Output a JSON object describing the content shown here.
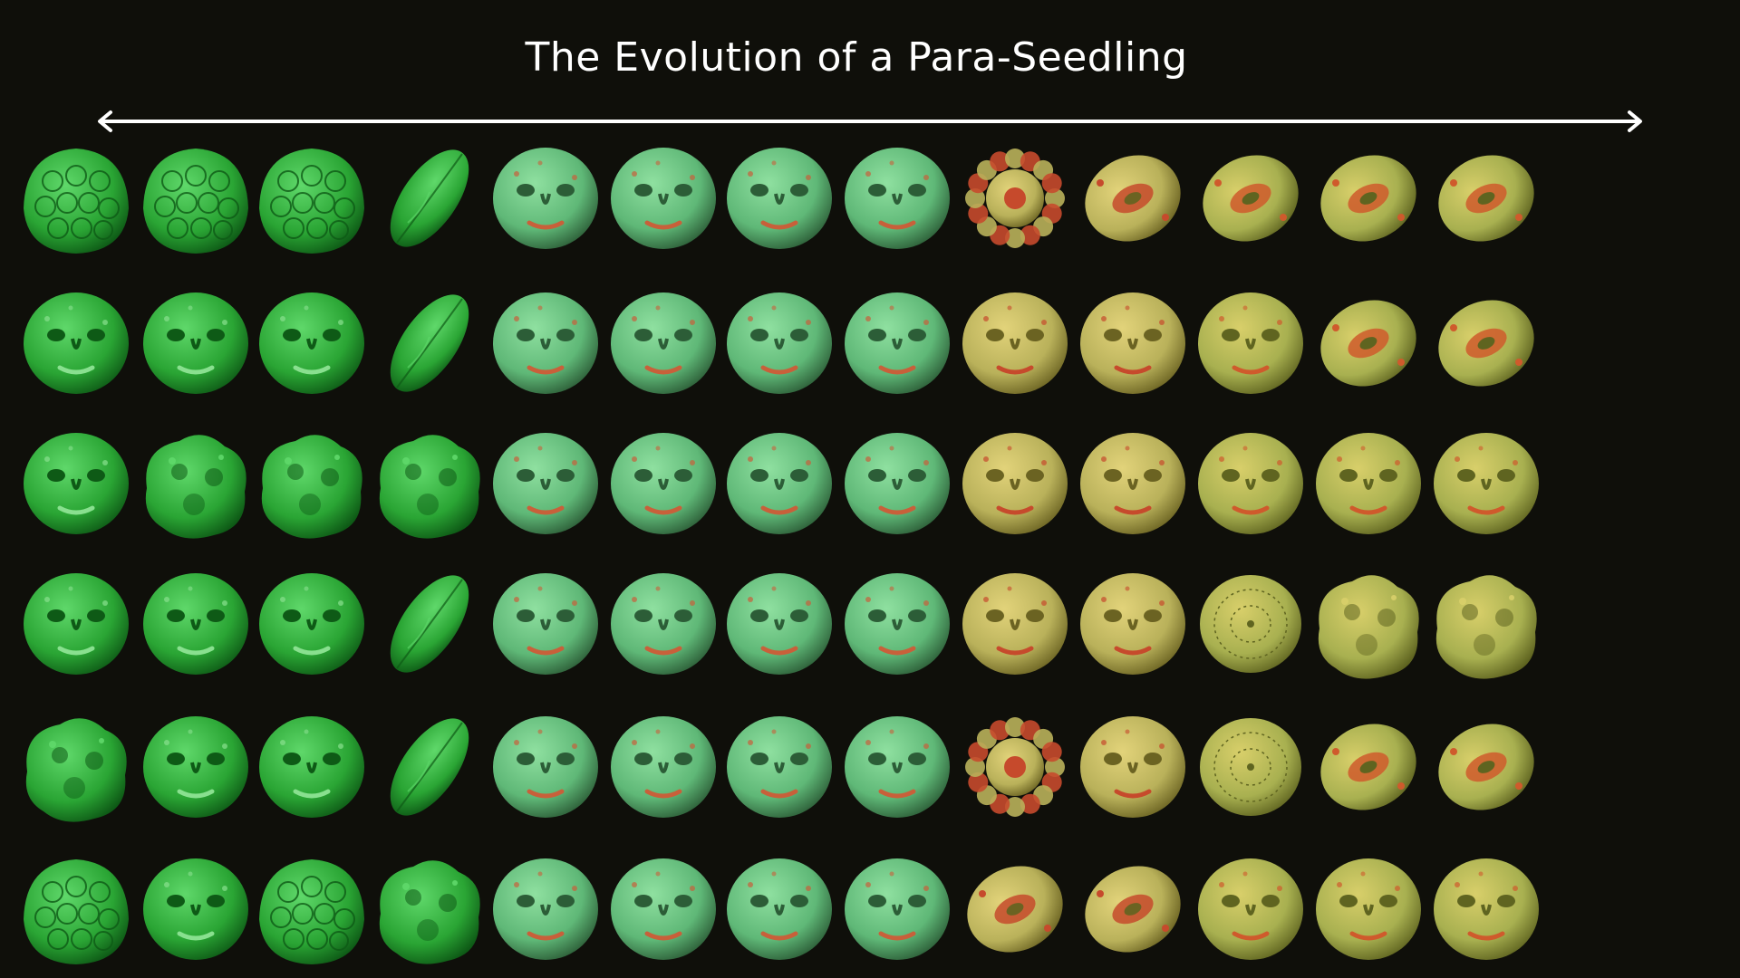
{
  "title": "The Evolution of a Para-Seedling",
  "arrow": {
    "direction": "bidirectional",
    "color": "#ffffff"
  },
  "palette": {
    "background": "#0f0f0a",
    "green": "#2fb83a",
    "mint": "#6fcf84",
    "rust": "#c8603a",
    "yellow": "#c9b24a",
    "beige": "#b8ad8a"
  },
  "grid": {
    "rows": 6,
    "columns": 13,
    "items": [
      [
        "seed-pod-icon",
        "seed-pod-icon",
        "seed-pod-icon",
        "leaf-pod-icon",
        "face-icon",
        "face-icon",
        "face-icon",
        "face-icon",
        "flower-icon",
        "pod-icon",
        "pod-icon",
        "pod-icon",
        "pod-icon"
      ],
      [
        "face-icon",
        "face-icon",
        "face-icon",
        "leaf-pod-icon",
        "face-icon",
        "face-icon",
        "face-icon",
        "face-icon",
        "face-icon",
        "face-icon",
        "face-icon",
        "pod-icon",
        "pod-icon"
      ],
      [
        "face-icon",
        "blob-icon",
        "blob-icon",
        "blob-icon",
        "face-icon",
        "face-icon",
        "face-icon",
        "face-icon",
        "face-icon",
        "face-icon",
        "face-icon",
        "face-icon",
        "face-icon"
      ],
      [
        "face-icon",
        "face-icon",
        "face-icon",
        "leaf-pod-icon",
        "face-icon",
        "face-icon",
        "face-icon",
        "face-icon",
        "face-icon",
        "face-icon",
        "disc-icon",
        "blob-icon",
        "blob-icon"
      ],
      [
        "blob-icon",
        "face-icon",
        "face-icon",
        "leaf-pod-icon",
        "face-icon",
        "face-icon",
        "face-icon",
        "face-icon",
        "flower-icon",
        "face-icon",
        "disc-icon",
        "pod-icon",
        "pod-icon"
      ],
      [
        "seed-pod-icon",
        "face-icon",
        "seed-pod-icon",
        "blob-icon",
        "face-icon",
        "face-icon",
        "face-icon",
        "face-icon",
        "pod-icon",
        "pod-icon",
        "face-icon",
        "face-icon",
        "face-icon"
      ]
    ]
  }
}
